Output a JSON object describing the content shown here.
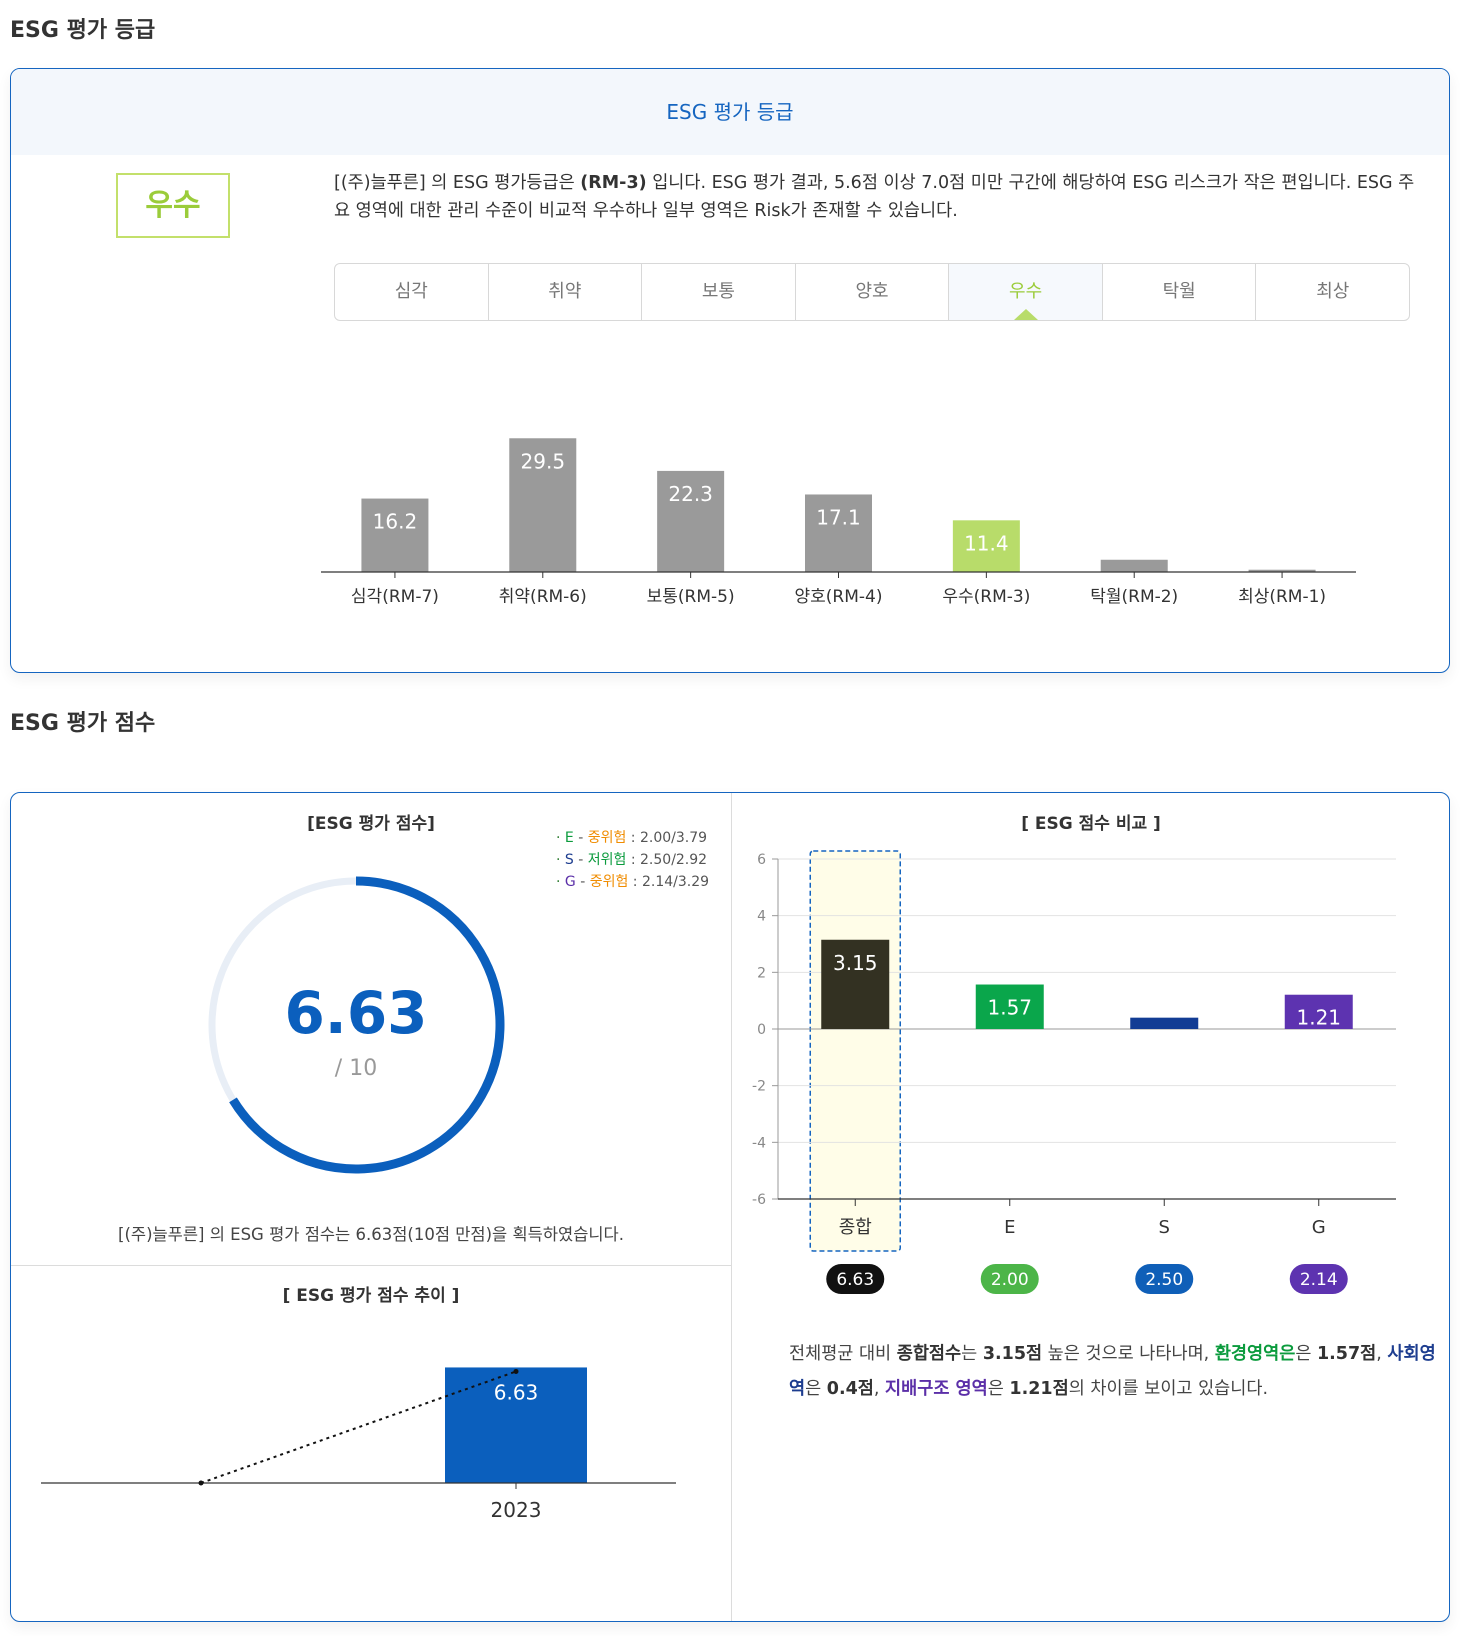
{
  "section1": {
    "title": "ESG 평가 등급",
    "box_title": "ESG 평가 등급",
    "grade": "우수",
    "description": {
      "p1": "[(주)늘푸른] 의 ESG 평가등급은 ",
      "grade_code": "(RM-3)",
      "p2": " 입니다. ESG 평가 결과, 5.6점 이상 7.0점 미만 구간에 해당하여 ESG 리스크가 작은 편입니다. ESG 주요 영역에 대한 관리 수준이 비교적 우수하나 일부 영역은 Risk가 존재할 수 있습니다."
    },
    "tabs": [
      "심각",
      "취약",
      "보통",
      "양호",
      "우수",
      "탁월",
      "최상"
    ],
    "active_tab": "우수"
  },
  "section2": {
    "title": "ESG 평가 점수",
    "gauge_title": "[ESG 평가 점수]",
    "score": "6.63",
    "max": "/ 10",
    "legend": [
      {
        "letter": "E",
        "sep": " - ",
        "risk": "중위험",
        "sep2": " : ",
        "value": "2.00/3.79",
        "letter_color": "#0b9b3d",
        "risk_color": "#f08c00"
      },
      {
        "letter": "S",
        "sep": " - ",
        "risk": "저위험",
        "sep2": " : ",
        "value": "2.50/2.92",
        "letter_color": "#1d3d8f",
        "risk_color": "#0b9b3d"
      },
      {
        "letter": "G",
        "sep": " - ",
        "risk": "중위험",
        "sep2": " : ",
        "value": "2.14/3.29",
        "letter_color": "#5b2fa8",
        "risk_color": "#f08c00"
      }
    ],
    "summary": "[(주)늘푸른] 의 ESG 평가 점수는 6.63점(10점 만점)을 획득하였습니다.",
    "trend_title": "[ ESG 평가 점수 추이 ]",
    "compare_title": "[ ESG 점수 비교 ]",
    "compare_text": {
      "t1": "전체평균 대비 ",
      "b1": "종합점수",
      "t2": "는 ",
      "b2": "3.15점",
      "t3": " 높은 것으로 나타나며, ",
      "e": "환경영역은",
      "t4": "은 ",
      "b3": "1.57점",
      "t5": ", ",
      "s": "사회영역",
      "t6": "은 ",
      "b4": "0.4점",
      "t7": ", ",
      "g": "지배구조 영역",
      "t8": "은 ",
      "b5": "1.21점",
      "t9": "의 차이를 보이고 있습니다."
    }
  },
  "chart_data": [
    {
      "type": "bar",
      "categories": [
        "심각(RM-7)",
        "취약(RM-6)",
        "보통(RM-5)",
        "양호(RM-4)",
        "우수(RM-3)",
        "탁월(RM-2)",
        "최상(RM-1)"
      ],
      "values": [
        16.2,
        29.5,
        22.3,
        17.1,
        11.4,
        2.7,
        0.5
      ],
      "value_labels": [
        "16.2",
        "29.5",
        "22.3",
        "17.1",
        "11.4",
        "",
        ""
      ],
      "highlight": "우수(RM-3)",
      "ylim": [
        0,
        30
      ],
      "colors": {
        "bar": "#9a9a9a",
        "highlight": "#b8dc6a"
      }
    },
    {
      "type": "gauge",
      "value": 6.63,
      "max": 10,
      "colors": {
        "fill": "#0b5fbd",
        "track": "#e8eef6"
      }
    },
    {
      "type": "bar",
      "categories": [
        "2023"
      ],
      "values": [
        6.63
      ],
      "value_labels": [
        "6.63"
      ],
      "line": {
        "x": [
          0,
          1
        ],
        "y": [
          0,
          6.63
        ],
        "style": "dotted"
      },
      "ylim": [
        0,
        7
      ],
      "colors": {
        "bar": "#0b5fbd"
      }
    },
    {
      "type": "bar",
      "categories": [
        "종합",
        "E",
        "S",
        "G"
      ],
      "values": [
        3.15,
        1.57,
        0.4,
        1.21
      ],
      "value_labels": [
        "3.15",
        "1.57",
        "",
        "1.21"
      ],
      "ylim": [
        -6,
        6
      ],
      "yticks": [
        "-6",
        "-4",
        "-2",
        "0",
        "2",
        "4",
        "6"
      ],
      "ytick_values": [
        -6,
        -4,
        -2,
        0,
        2,
        4,
        6
      ],
      "grid": true,
      "badges": [
        "6.63",
        "2.00",
        "2.50",
        "2.14"
      ],
      "colors": {
        "bars": [
          "#333122",
          "#0aa64b",
          "#123c94",
          "#5d33b0"
        ],
        "highlight_bg": "#fffde8",
        "highlight_border": "#1565c0"
      }
    }
  ]
}
